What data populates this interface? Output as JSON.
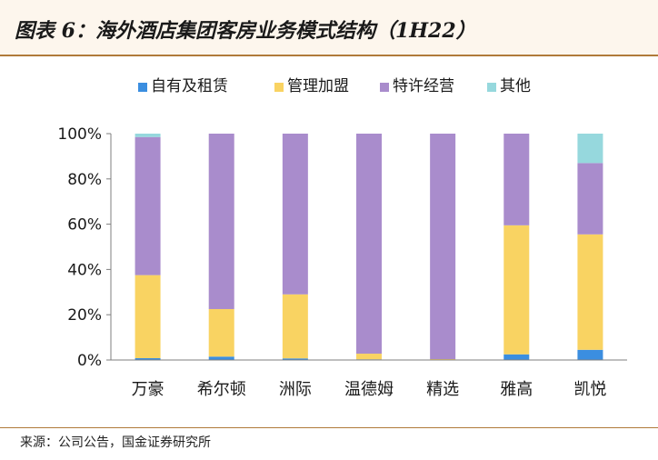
{
  "header": {
    "title": "图表 6：海外酒店集团客房业务模式结构（1H22）"
  },
  "footer": {
    "source": "来源：公司公告，国金证券研究所"
  },
  "colors": {
    "series": [
      "#3b8ee0",
      "#f9d362",
      "#a98ccc",
      "#96d8dd"
    ],
    "axis": "#7f7f7f"
  },
  "chart_data": {
    "type": "bar",
    "stacked": true,
    "categories": [
      "万豪",
      "希尔顿",
      "洲际",
      "温德姆",
      "精选",
      "雅高",
      "凯悦"
    ],
    "series": [
      {
        "name": "自有及租赁",
        "values": [
          0.8,
          1.5,
          0.7,
          0.3,
          0.2,
          2.5,
          4.5
        ]
      },
      {
        "name": "管理加盟",
        "values": [
          36.7,
          21.0,
          28.3,
          2.5,
          0.2,
          57.0,
          51.0
        ]
      },
      {
        "name": "特许经营",
        "values": [
          61.0,
          77.5,
          71.0,
          97.2,
          99.6,
          40.5,
          31.5
        ]
      },
      {
        "name": "其他",
        "values": [
          1.5,
          0.0,
          0.0,
          0.0,
          0.0,
          0.0,
          13.0
        ]
      }
    ],
    "ylim": [
      0,
      100
    ],
    "yticks": [
      "0%",
      "20%",
      "40%",
      "60%",
      "80%",
      "100%"
    ],
    "legend_position": "top",
    "grid": false
  }
}
